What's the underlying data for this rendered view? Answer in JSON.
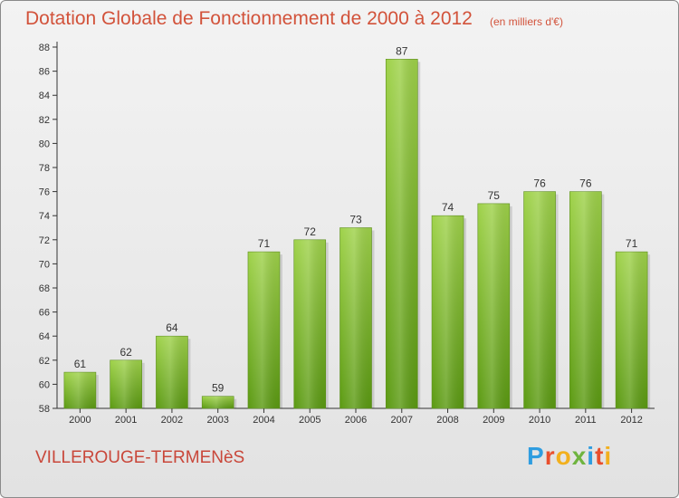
{
  "header": {
    "title": "Dotation Globale de Fonctionnement de 2000 à 2012",
    "unit": "(en milliers d'€)"
  },
  "footer": {
    "commune": "VILLEROUGE-TERMENèS",
    "logo": "Proxiti"
  },
  "colors": {
    "title": "#d2523a",
    "bar_top": "#9fd24a",
    "bar_bottom": "#5b9a12",
    "axis": "#333333"
  },
  "chart_data": {
    "type": "bar",
    "title": "Dotation Globale de Fonctionnement de 2000 à 2012",
    "subtitle": "(en milliers d'€)",
    "xlabel": "",
    "ylabel": "",
    "categories": [
      "2000",
      "2001",
      "2002",
      "2003",
      "2004",
      "2005",
      "2006",
      "2007",
      "2008",
      "2009",
      "2010",
      "2011",
      "2012"
    ],
    "values": [
      61,
      62,
      64,
      59,
      71,
      72,
      73,
      87,
      74,
      75,
      76,
      76,
      71
    ],
    "ylim": [
      58,
      88
    ],
    "yticks": [
      58,
      60,
      62,
      64,
      66,
      68,
      70,
      72,
      74,
      76,
      78,
      80,
      82,
      84,
      86,
      88
    ],
    "grid": false,
    "legend": "none"
  }
}
